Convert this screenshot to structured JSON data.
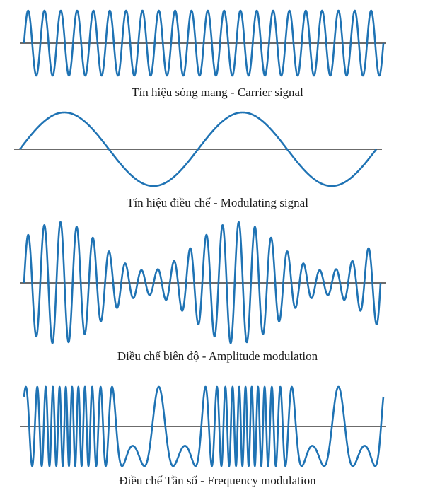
{
  "colors": {
    "wave": "#1f73b4",
    "axis": "#3a3a3a",
    "text": "#1a1a1a"
  },
  "panels": [
    {
      "id": "carrier",
      "caption": "Tín hiệu sóng mang - Carrier signal",
      "kind": "carrier",
      "cycles": 22
    },
    {
      "id": "modulating",
      "caption": "Tín hiệu điều chế - Modulating signal",
      "kind": "modulating",
      "cycles": 2
    },
    {
      "id": "am",
      "caption": "Điều chế biên độ - Amplitude modulation",
      "kind": "amplitude-modulation",
      "carrier_cycles": 22,
      "modulating_cycles": 2
    },
    {
      "id": "fm",
      "caption": "Điều chế Tần số - Frequency modulation",
      "kind": "frequency-modulation",
      "carrier_cycles": 22,
      "modulating_cycles": 2
    }
  ]
}
